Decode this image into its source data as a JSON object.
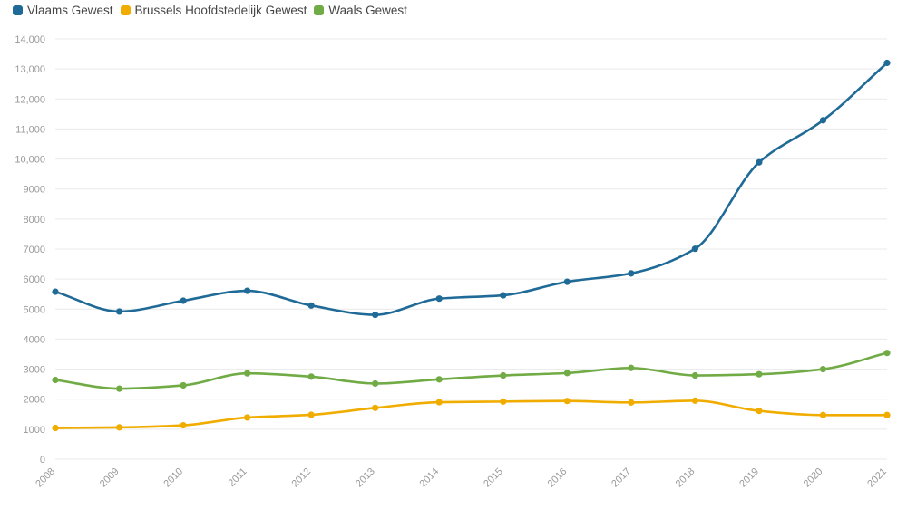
{
  "chart_data": {
    "type": "line",
    "title": "",
    "xlabel": "",
    "ylabel": "",
    "x": [
      "2008",
      "2009",
      "2010",
      "2011",
      "2012",
      "2013",
      "2014",
      "2015",
      "2016",
      "2017",
      "2018",
      "2019",
      "2020",
      "2021"
    ],
    "ylim": [
      0,
      14000
    ],
    "yticks": [
      0,
      1000,
      2000,
      3000,
      4000,
      5000,
      6000,
      7000,
      8000,
      9000,
      10000,
      11000,
      12000,
      13000,
      14000
    ],
    "ytick_labels": [
      "0",
      "1000",
      "2000",
      "3000",
      "4000",
      "5000",
      "6000",
      "7000",
      "8000",
      "9000",
      "10,000",
      "11,000",
      "12,000",
      "13,000",
      "14,000"
    ],
    "grid": true,
    "legend_position": "top-left",
    "series": [
      {
        "name": "Vlaams Gewest",
        "color": "#1f6a96",
        "values": [
          5580,
          4920,
          5280,
          5610,
          5120,
          4810,
          5350,
          5460,
          5910,
          6190,
          7010,
          9890,
          11290,
          13200
        ]
      },
      {
        "name": "Brussels Hoofdstedelijk Gewest",
        "color": "#f0ad00",
        "values": [
          1040,
          1060,
          1130,
          1390,
          1480,
          1710,
          1900,
          1920,
          1940,
          1890,
          1950,
          1610,
          1470,
          1470
        ]
      },
      {
        "name": "Waals Gewest",
        "color": "#71ab46",
        "values": [
          2640,
          2350,
          2460,
          2860,
          2750,
          2520,
          2660,
          2790,
          2870,
          3040,
          2790,
          2830,
          3000,
          3540
        ]
      }
    ]
  }
}
